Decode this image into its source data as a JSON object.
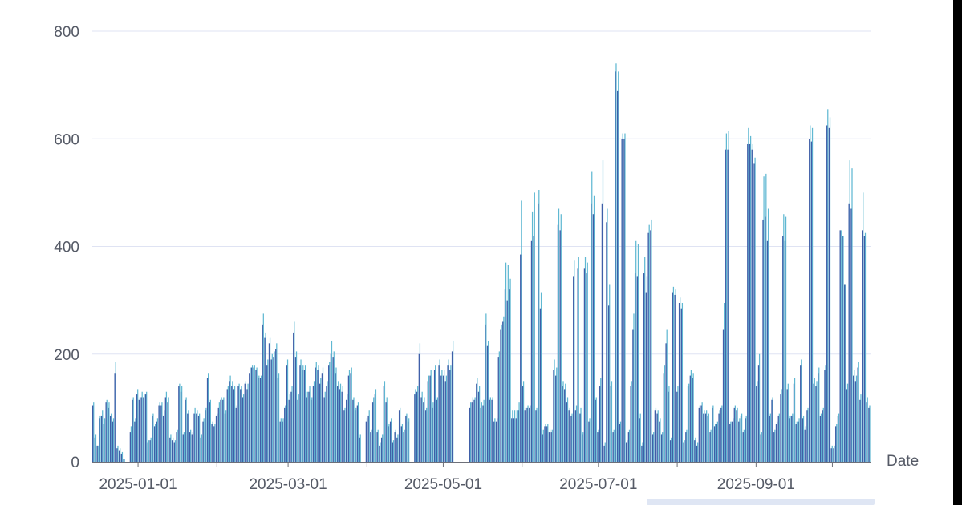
{
  "chart_data": {
    "type": "bar",
    "title": "",
    "xlabel": "Date",
    "ylabel": "",
    "ylim": [
      0,
      800
    ],
    "yticks": [
      0,
      200,
      400,
      600,
      800
    ],
    "xticks": [
      "2025-01-01",
      "2025-03-01",
      "2025-05-01",
      "2025-07-01",
      "2025-09-01"
    ],
    "x_start": "2024-12-14",
    "x_end": "2025-10-15",
    "grid": "horizontal",
    "colors": {
      "light": "#5fb8d2",
      "dark": "#3f5ea8",
      "grid": "#dfe3f3",
      "axis": "#6e7079"
    },
    "series": [
      {
        "key": "light",
        "values": [
          110,
          50,
          30,
          85,
          95,
          80,
          115,
          110,
          90,
          80,
          185,
          30,
          25,
          18,
          5,
          0,
          0,
          65,
          120,
          80,
          135,
          120,
          130,
          125,
          130,
          40,
          45,
          90,
          70,
          80,
          110,
          110,
          95,
          130,
          120,
          50,
          45,
          40,
          60,
          145,
          140,
          55,
          120,
          95,
          60,
          55,
          100,
          95,
          90,
          50,
          80,
          100,
          165,
          115,
          75,
          70,
          90,
          110,
          120,
          120,
          95,
          140,
          160,
          150,
          140,
          105,
          145,
          140,
          125,
          150,
          145,
          175,
          180,
          180,
          175,
          160,
          160,
          275,
          240,
          190,
          230,
          200,
          205,
          220,
          165,
          80,
          80,
          105,
          190,
          125,
          140,
          260,
          205,
          125,
          190,
          180,
          180,
          130,
          140,
          120,
          150,
          185,
          180,
          155,
          175,
          130,
          150,
          185,
          225,
          205,
          175,
          150,
          145,
          140,
          100,
          125,
          170,
          175,
          120,
          100,
          110,
          50,
          0,
          0,
          80,
          95,
          60,
          120,
          135,
          60,
          35,
          50,
          150,
          120,
          70,
          80,
          40,
          60,
          50,
          100,
          70,
          60,
          90,
          80,
          0,
          0,
          135,
          140,
          220,
          130,
          120,
          100,
          160,
          170,
          110,
          180,
          120,
          190,
          170,
          170,
          160,
          190,
          180,
          225,
          0,
          0,
          0,
          0,
          0,
          0,
          0,
          110,
          120,
          120,
          155,
          140,
          110,
          115,
          275,
          225,
          120,
          120,
          80,
          80,
          205,
          255,
          270,
          370,
          365,
          340,
          95,
          95,
          95,
          110,
          485,
          150,
          100,
          105,
          105,
          465,
          500,
          100,
          505,
          315,
          60,
          70,
          70,
          60,
          60,
          190,
          175,
          470,
          460,
          150,
          145,
          120,
          100,
          90,
          375,
          105,
          380,
          100,
          55,
          380,
          370,
          80,
          540,
          495,
          120,
          60,
          155,
          560,
          35,
          470,
          330,
          150,
          60,
          740,
          725,
          75,
          610,
          610,
          40,
          60,
          150,
          275,
          410,
          405,
          90,
          35,
          380,
          345,
          440,
          450,
          55,
          100,
          95,
          80,
          55,
          180,
          245,
          140,
          45,
          325,
          320,
          140,
          305,
          295,
          40,
          60,
          145,
          170,
          165,
          45,
          35,
          105,
          110,
          95,
          95,
          90,
          60,
          105,
          70,
          75,
          95,
          105,
          295,
          610,
          615,
          75,
          80,
          105,
          100,
          80,
          90,
          60,
          85,
          620,
          605,
          590,
          565,
          150,
          200,
          55,
          530,
          535,
          470,
          90,
          120,
          60,
          75,
          90,
          135,
          460,
          455,
          145,
          85,
          90,
          155,
          75,
          80,
          190,
          85,
          65,
          100,
          625,
          620,
          155,
          150,
          175,
          90,
          100,
          180,
          655,
          640,
          30,
          30,
          70,
          90,
          430,
          420,
          330,
          145,
          560,
          545,
          170,
          160,
          185,
          125,
          500,
          425,
          120,
          105
        ]
      },
      {
        "key": "dark",
        "values": [
          105,
          45,
          30,
          80,
          85,
          70,
          110,
          100,
          85,
          75,
          165,
          25,
          20,
          15,
          5,
          0,
          0,
          55,
          115,
          75,
          125,
          115,
          120,
          120,
          125,
          35,
          40,
          85,
          65,
          75,
          105,
          105,
          85,
          120,
          110,
          45,
          40,
          35,
          55,
          140,
          130,
          50,
          115,
          90,
          55,
          50,
          90,
          90,
          85,
          45,
          75,
          95,
          155,
          110,
          70,
          65,
          85,
          100,
          115,
          115,
          90,
          135,
          150,
          140,
          135,
          100,
          140,
          135,
          120,
          145,
          135,
          165,
          175,
          175,
          170,
          155,
          155,
          255,
          230,
          180,
          220,
          190,
          195,
          210,
          155,
          75,
          75,
          100,
          180,
          115,
          130,
          240,
          195,
          115,
          180,
          170,
          170,
          120,
          130,
          115,
          140,
          175,
          170,
          145,
          165,
          120,
          140,
          180,
          200,
          195,
          165,
          140,
          135,
          130,
          95,
          115,
          160,
          165,
          115,
          95,
          105,
          45,
          0,
          0,
          75,
          85,
          55,
          110,
          125,
          55,
          30,
          45,
          140,
          110,
          65,
          75,
          35,
          55,
          45,
          95,
          65,
          55,
          85,
          75,
          0,
          0,
          125,
          130,
          200,
          120,
          110,
          95,
          150,
          160,
          100,
          170,
          115,
          180,
          160,
          160,
          150,
          180,
          170,
          205,
          0,
          0,
          0,
          0,
          0,
          0,
          0,
          100,
          110,
          115,
          145,
          130,
          100,
          105,
          255,
          215,
          115,
          115,
          75,
          75,
          195,
          245,
          260,
          320,
          300,
          320,
          80,
          80,
          80,
          95,
          385,
          140,
          95,
          100,
          100,
          410,
          420,
          95,
          480,
          285,
          50,
          65,
          65,
          55,
          55,
          170,
          160,
          440,
          430,
          140,
          135,
          110,
          95,
          85,
          345,
          95,
          360,
          90,
          50,
          360,
          350,
          75,
          480,
          460,
          115,
          55,
          140,
          480,
          30,
          445,
          290,
          140,
          55,
          725,
          690,
          70,
          600,
          600,
          35,
          55,
          140,
          245,
          350,
          345,
          80,
          30,
          350,
          315,
          425,
          430,
          50,
          95,
          90,
          75,
          50,
          165,
          220,
          130,
          40,
          315,
          310,
          130,
          295,
          285,
          35,
          55,
          140,
          160,
          155,
          40,
          30,
          100,
          105,
          90,
          90,
          85,
          55,
          100,
          65,
          70,
          90,
          100,
          245,
          580,
          580,
          70,
          75,
          100,
          95,
          75,
          85,
          55,
          80,
          590,
          590,
          580,
          555,
          140,
          180,
          50,
          450,
          455,
          410,
          85,
          115,
          55,
          70,
          85,
          125,
          420,
          410,
          135,
          80,
          85,
          145,
          70,
          75,
          180,
          80,
          60,
          95,
          600,
          595,
          145,
          140,
          165,
          85,
          95,
          170,
          625,
          620,
          25,
          25,
          65,
          85,
          430,
          420,
          330,
          135,
          480,
          470,
          160,
          150,
          175,
          115,
          430,
          420,
          110,
          100
        ]
      }
    ]
  }
}
